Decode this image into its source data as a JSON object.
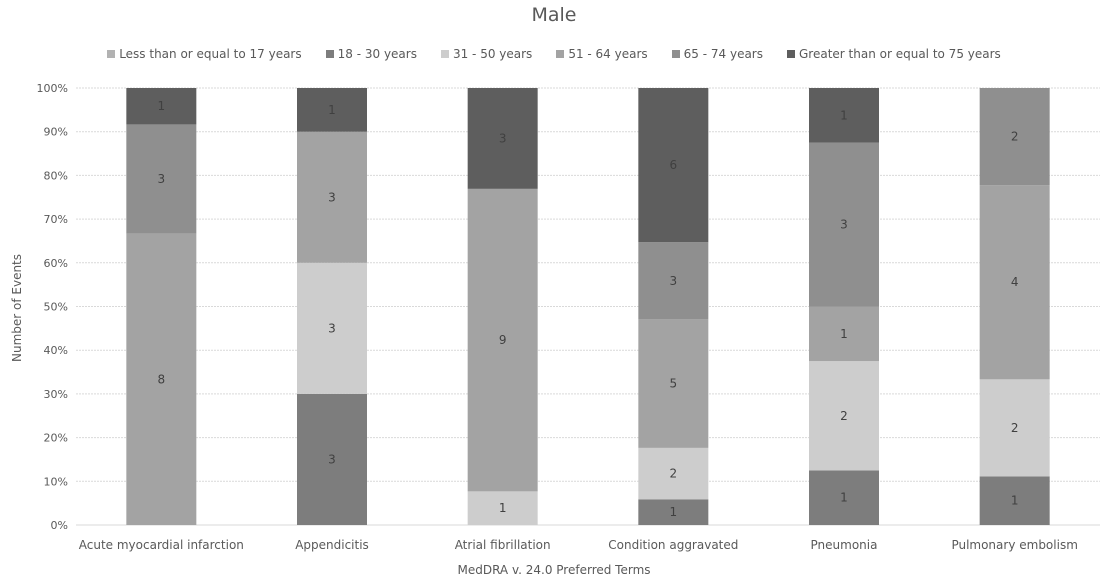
{
  "chart_data": {
    "type": "bar",
    "stacked": "percent",
    "title": "Male",
    "xlabel": "MedDRA v. 24.0 Preferred Terms",
    "ylabel": "Number of Events",
    "ylim": [
      0,
      100
    ],
    "yticks": [
      "0%",
      "10%",
      "20%",
      "30%",
      "40%",
      "50%",
      "60%",
      "70%",
      "80%",
      "90%",
      "100%"
    ],
    "legend_position": "top",
    "grid": true,
    "categories": [
      "Acute myocardial infarction",
      "Appendicitis",
      "Atrial fibrillation",
      "Condition aggravated",
      "Pneumonia",
      "Pulmonary embolism"
    ],
    "series": [
      {
        "name": "Less than or equal to 17 years",
        "color": "#b2b2b2",
        "values": [
          null,
          null,
          null,
          null,
          null,
          null
        ]
      },
      {
        "name": "18 - 30 years",
        "color": "#7d7d7d",
        "values": [
          null,
          3,
          null,
          1,
          1,
          1
        ]
      },
      {
        "name": "31 - 50 years",
        "color": "#cdcdcd",
        "values": [
          null,
          3,
          1,
          2,
          2,
          2
        ]
      },
      {
        "name": "51 - 64 years",
        "color": "#a3a3a3",
        "values": [
          8,
          3,
          9,
          5,
          1,
          4
        ]
      },
      {
        "name": "65 - 74 years",
        "color": "#8f8f8f",
        "values": [
          3,
          null,
          null,
          3,
          3,
          2
        ]
      },
      {
        "name": "Greater than or equal to 75 years",
        "color": "#5e5e5e",
        "values": [
          1,
          1,
          3,
          6,
          1,
          null
        ]
      }
    ]
  }
}
